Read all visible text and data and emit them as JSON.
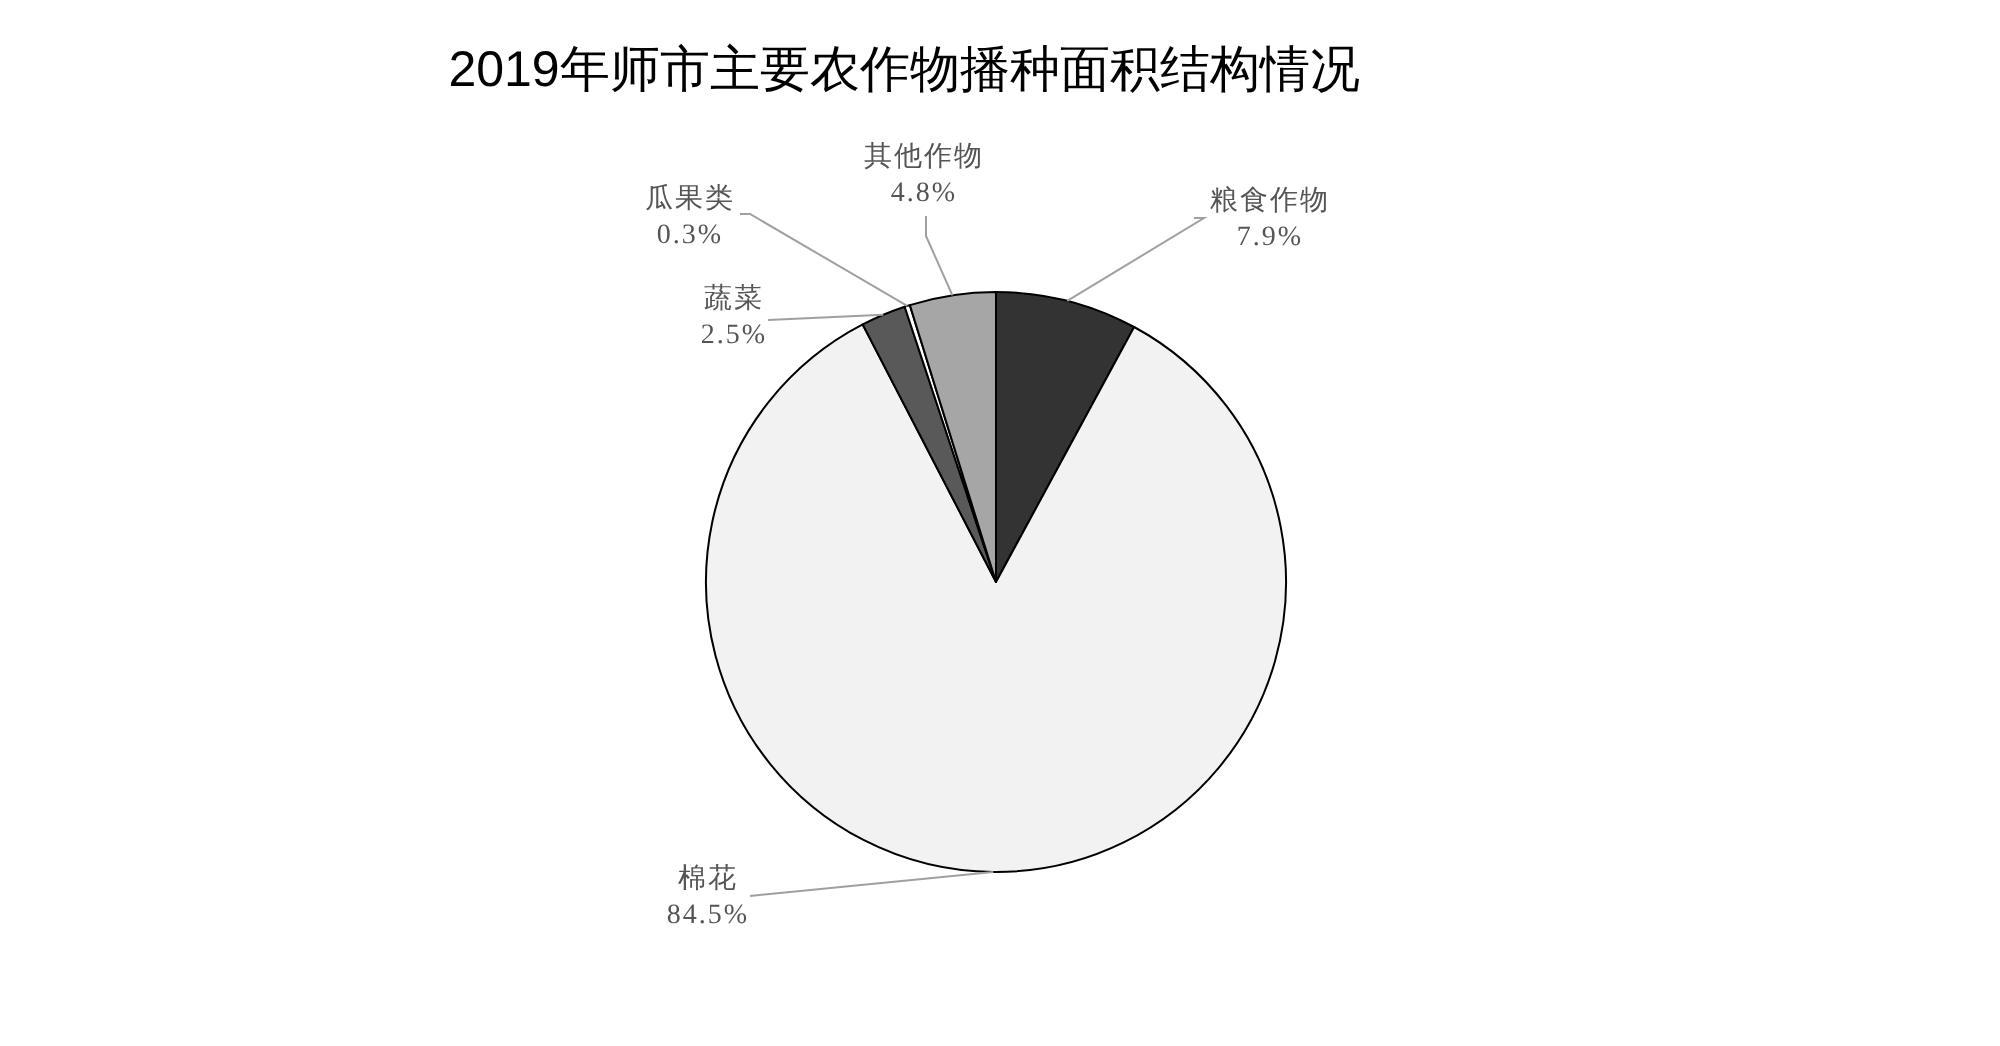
{
  "chart_data": {
    "type": "pie",
    "title": "2019年师市主要农作物播种面积结构情况",
    "categories": [
      "粮食作物",
      "棉花",
      "蔬菜",
      "瓜果类",
      "其他作物"
    ],
    "values": [
      7.9,
      84.5,
      2.5,
      0.3,
      4.8
    ],
    "value_labels": [
      "7.9%",
      "84.5%",
      "2.5%",
      "0.3%",
      "4.8%"
    ],
    "colors": [
      "#333333",
      "#f2f2f2",
      "#595959",
      "#ffffff",
      "#a6a6a6"
    ],
    "legend": false
  }
}
